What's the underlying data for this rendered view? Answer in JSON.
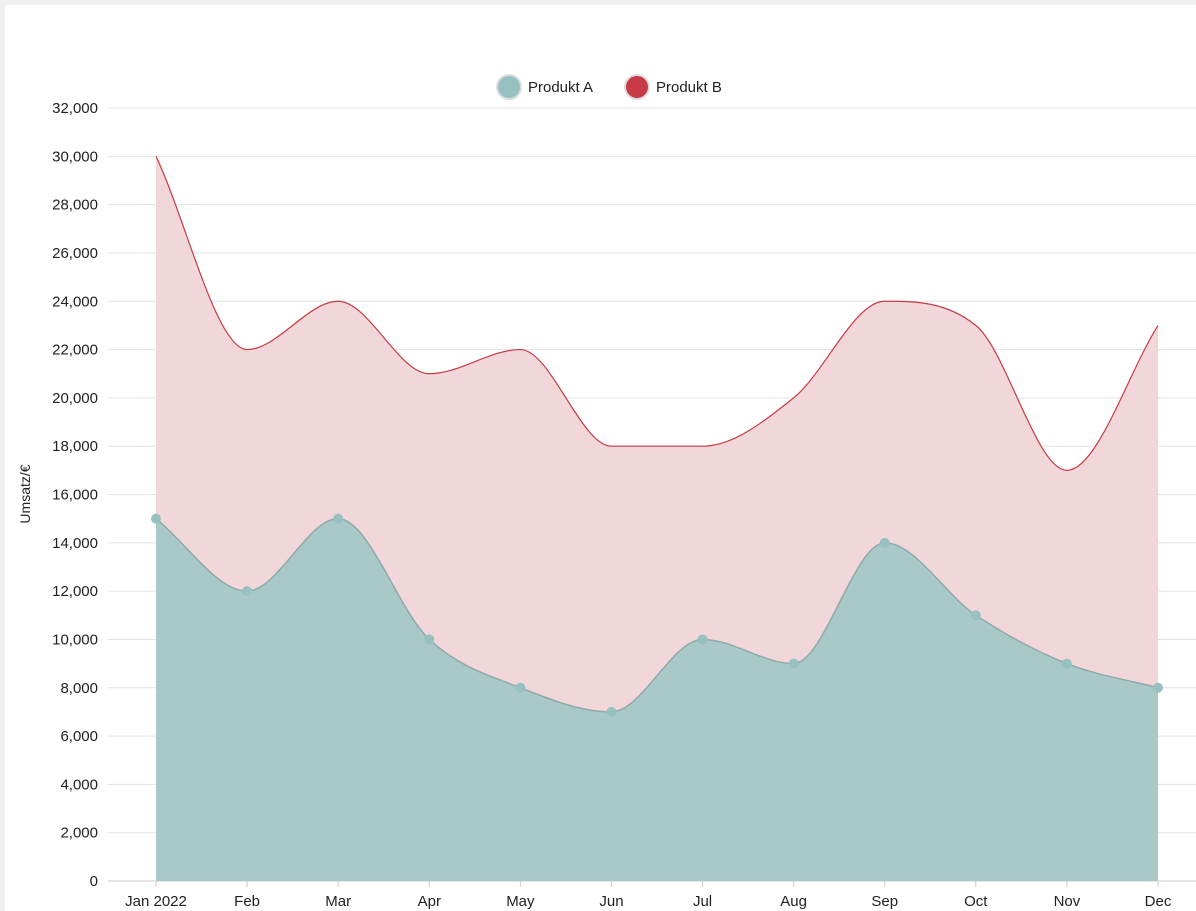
{
  "chart_data": {
    "type": "area",
    "categories": [
      "Jan 2022",
      "Feb",
      "Mar",
      "Apr",
      "May",
      "Jun",
      "Jul",
      "Aug",
      "Sep",
      "Oct",
      "Nov",
      "Dec"
    ],
    "series": [
      {
        "name": "Produkt A",
        "color": "#97c0c0",
        "values": [
          15000,
          12000,
          15000,
          10000,
          8000,
          7000,
          10000,
          9000,
          14000,
          11000,
          9000,
          8000
        ]
      },
      {
        "name": "Produkt B",
        "color": "#c83a45",
        "values": [
          30000,
          22000,
          24000,
          21000,
          22000,
          18000,
          18000,
          20000,
          24000,
          23000,
          17000,
          23000
        ]
      }
    ],
    "ylabel": "Umsatz/€",
    "ylim": [
      0,
      32000
    ],
    "yticks": [
      "0",
      "2,000",
      "4,000",
      "6,000",
      "8,000",
      "10,000",
      "12,000",
      "14,000",
      "16,000",
      "18,000",
      "20,000",
      "22,000",
      "24,000",
      "26,000",
      "28,000",
      "30,000",
      "32,000"
    ],
    "grid": true,
    "legend": "top-center",
    "smooth": true
  }
}
